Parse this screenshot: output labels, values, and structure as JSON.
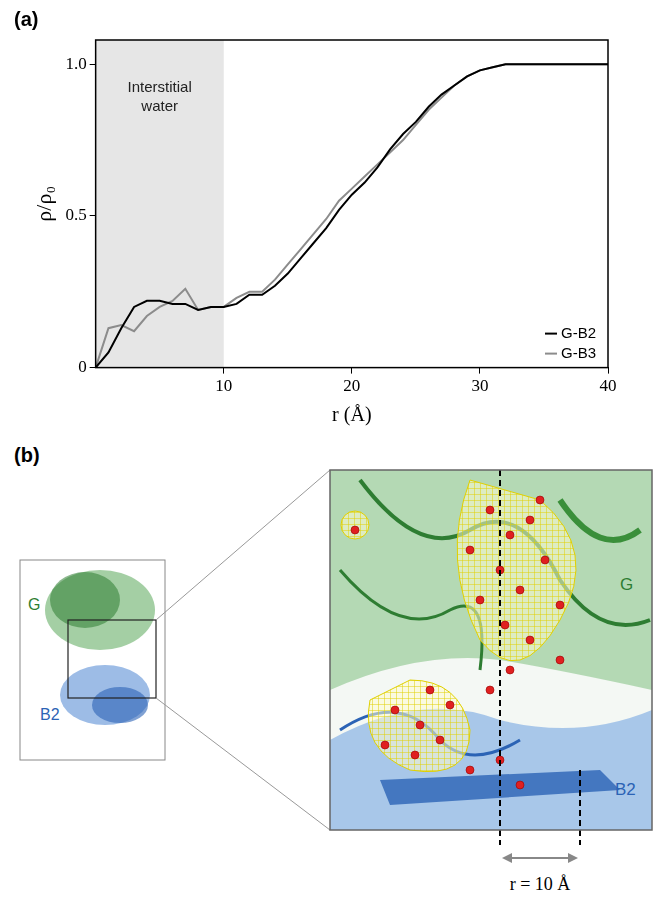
{
  "chart_data": {
    "type": "line",
    "panel": "(a)",
    "x_label": "r (Å)",
    "y_label": "ρ/ρ₀",
    "shaded_region": {
      "x": [
        0,
        10
      ],
      "label": "Interstitial water"
    },
    "xlim": [
      0,
      40
    ],
    "xticks": [
      10,
      20,
      30,
      40
    ],
    "ylim": [
      0,
      1.08
    ],
    "yticks": [
      0,
      0.5,
      {
        "value": 1,
        "label": "1.0"
      }
    ],
    "grid": false,
    "legend": "lower right",
    "x": [
      0,
      1,
      2,
      3,
      4,
      5,
      6,
      7,
      8,
      9,
      10,
      11,
      12,
      13,
      14,
      15,
      16,
      17,
      18,
      19,
      20,
      21,
      22,
      23,
      24,
      25,
      26,
      27,
      28,
      29,
      30,
      31,
      32,
      33,
      34,
      35,
      36,
      37,
      38,
      39,
      40
    ],
    "series": [
      {
        "name": "G-B2",
        "color": "#000000",
        "line_style": "solid",
        "values": [
          0,
          0.05,
          0.13,
          0.2,
          0.22,
          0.22,
          0.21,
          0.21,
          0.19,
          0.2,
          0.2,
          0.21,
          0.24,
          0.24,
          0.27,
          0.31,
          0.36,
          0.41,
          0.46,
          0.52,
          0.57,
          0.61,
          0.66,
          0.72,
          0.77,
          0.81,
          0.86,
          0.9,
          0.93,
          0.96,
          0.98,
          0.99,
          1,
          1,
          1,
          1,
          1,
          1,
          1,
          1,
          1
        ]
      },
      {
        "name": "G-B3",
        "color": "#8c8c8c",
        "line_style": "solid",
        "values": [
          0,
          0.13,
          0.14,
          0.12,
          0.17,
          0.2,
          0.22,
          0.26,
          0.19,
          0.2,
          0.2,
          0.23,
          0.25,
          0.25,
          0.29,
          0.34,
          0.39,
          0.44,
          0.49,
          0.55,
          0.59,
          0.63,
          0.67,
          0.71,
          0.75,
          0.8,
          0.85,
          0.89,
          0.93,
          0.96,
          0.98,
          0.99,
          1,
          1,
          1,
          1,
          1,
          1,
          1,
          1,
          1
        ]
      }
    ]
  },
  "panel_b": {
    "label": "(b)",
    "overview_labels": [
      "G",
      "B2"
    ],
    "zoom_labels": [
      "G",
      "B2"
    ],
    "annotation": "r = 10 Å"
  }
}
